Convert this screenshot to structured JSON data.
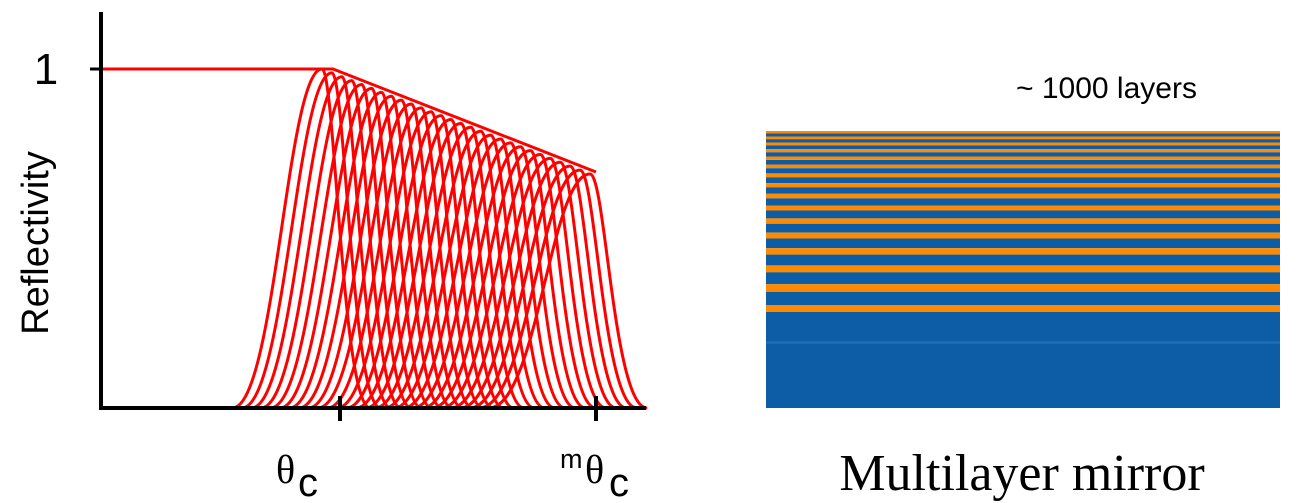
{
  "plot": {
    "y_axis_label": "Reflectivity",
    "y_tick_label": "1",
    "x_tick_1_main": "θ",
    "x_tick_1_sub": "c",
    "x_tick_2_prefix": "m",
    "x_tick_2_main": "θ",
    "x_tick_2_sub": "c",
    "curve_color": "#ff0000",
    "axis_color": "#000000",
    "curve_count": 28
  },
  "mirror": {
    "layers_label": "~ 1000 layers",
    "caption": "Multilayer mirror",
    "colors": {
      "blue": "#0d5ca6",
      "orange": "#ff8a00"
    }
  }
}
